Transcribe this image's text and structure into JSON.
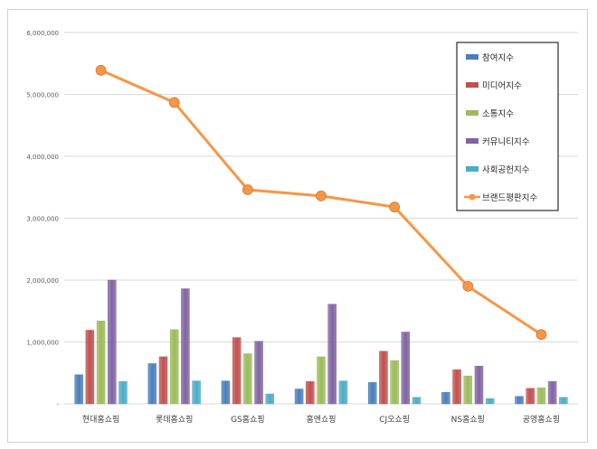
{
  "chart_data": {
    "type": "bar",
    "categories": [
      "현대홈쇼핑",
      "롯데홈쇼핑",
      "GS홈쇼핑",
      "홈앤쇼핑",
      "CJ오쇼핑",
      "NS홈쇼핑",
      "공영홈쇼핑"
    ],
    "series": [
      {
        "name": "참여지수",
        "color": "#4a7ebb",
        "values": [
          470000,
          650000,
          370000,
          240000,
          345000,
          185000,
          120000
        ]
      },
      {
        "name": "미디어지수",
        "color": "#c0504d",
        "values": [
          1190000,
          760000,
          1070000,
          360000,
          850000,
          550000,
          250000
        ]
      },
      {
        "name": "소통지수",
        "color": "#9bbb59",
        "values": [
          1340000,
          1200000,
          810000,
          760000,
          700000,
          450000,
          260000
        ]
      },
      {
        "name": "커뮤니티지수",
        "color": "#8064a2",
        "values": [
          2000000,
          1860000,
          1010000,
          1610000,
          1160000,
          610000,
          360000
        ]
      },
      {
        "name": "사회공헌지수",
        "color": "#4bacc6",
        "values": [
          360000,
          370000,
          160000,
          370000,
          105000,
          85000,
          105000
        ]
      }
    ],
    "line_series": {
      "name": "브랜드평판지수",
      "color": "#f79646",
      "values": [
        5390000,
        4870000,
        3460000,
        3360000,
        3180000,
        1900000,
        1120000
      ]
    },
    "yticks": [
      "-",
      "1,000,000",
      "2,000,000",
      "3,000,000",
      "4,000,000",
      "5,000,000",
      "6,000,000"
    ],
    "ylim": [
      0,
      6000000
    ],
    "legend_position": "top-right",
    "grid": true
  }
}
